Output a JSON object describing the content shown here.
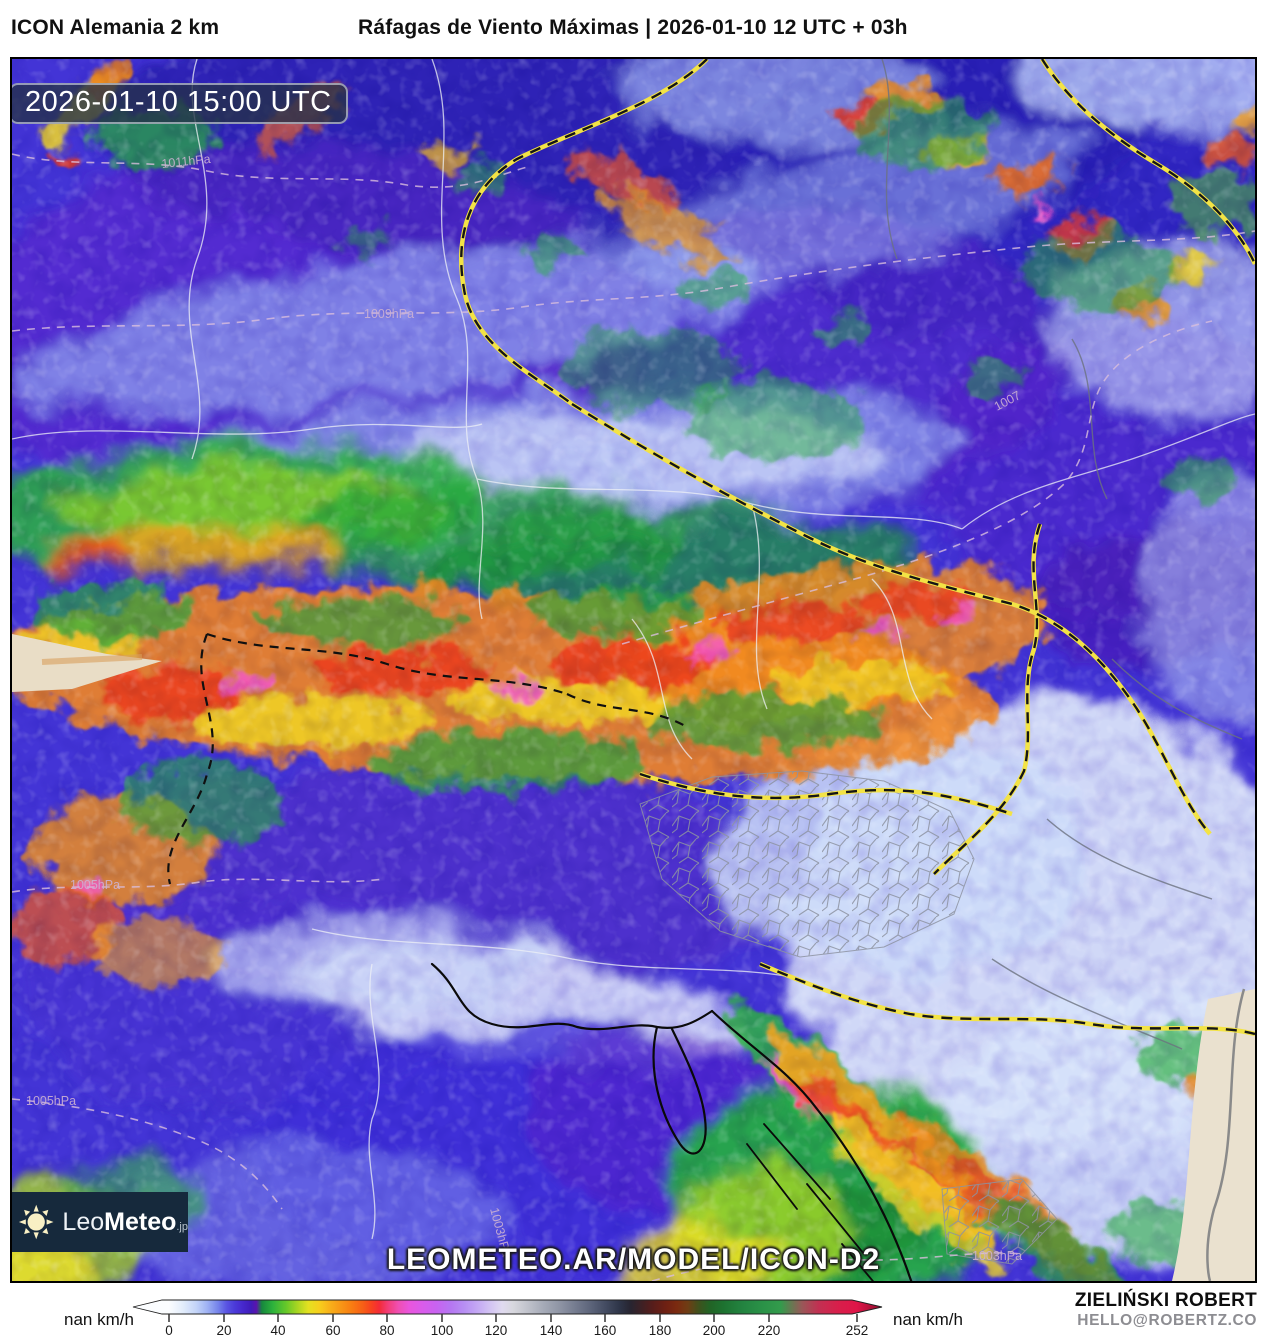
{
  "header": {
    "model": "ICON Alemania 2 km",
    "title": "Ráfagas de Viento Máximas | 2026-01-10 12 UTC + 03h"
  },
  "map": {
    "timestamp": "2026-01-10 15:00 UTC",
    "watermark": "LEOMETEO.AR/MODEL/ICON-D2",
    "isobar_labels": [
      "1011hPa",
      "1009hPa",
      "1007",
      "1005hPa",
      "1005hPa",
      "1003hPa",
      "1003hPa"
    ]
  },
  "logo": {
    "part1": "Leo",
    "part2": "Meteo",
    "suffix": ".jp"
  },
  "credits": {
    "author": "ZIELIŃSKI ROBERT",
    "contact": "HELLO@ROBERTZ.CO"
  },
  "scale": {
    "unit_left": "nan km/h",
    "unit_right": "nan km/h",
    "ticks": [
      "0",
      "20",
      "40",
      "60",
      "80",
      "100",
      "120",
      "140",
      "160",
      "180",
      "200",
      "220",
      "252"
    ],
    "tick_values": [
      0,
      20,
      40,
      60,
      80,
      100,
      120,
      140,
      160,
      180,
      200,
      220,
      252
    ],
    "max": 252,
    "gradient": [
      {
        "v": 0,
        "c": "#fbfdff"
      },
      {
        "v": 5,
        "c": "#e3edfb"
      },
      {
        "v": 10,
        "c": "#c3d4f8"
      },
      {
        "v": 14,
        "c": "#9fb2f3"
      },
      {
        "v": 18,
        "c": "#7583ea"
      },
      {
        "v": 21,
        "c": "#5a55e2"
      },
      {
        "v": 24,
        "c": "#4b3bd9"
      },
      {
        "v": 27,
        "c": "#4628cd"
      },
      {
        "v": 30,
        "c": "#3f1cba"
      },
      {
        "v": 32,
        "c": "#5a14ad"
      },
      {
        "v": 34,
        "c": "#17873d"
      },
      {
        "v": 38,
        "c": "#2db23c"
      },
      {
        "v": 43,
        "c": "#67c829"
      },
      {
        "v": 47,
        "c": "#a8d522"
      },
      {
        "v": 51,
        "c": "#e4e121"
      },
      {
        "v": 55,
        "c": "#f7cf1d"
      },
      {
        "v": 59,
        "c": "#f8b01a"
      },
      {
        "v": 63,
        "c": "#f89616"
      },
      {
        "v": 67,
        "c": "#f87c12"
      },
      {
        "v": 71,
        "c": "#f75f16"
      },
      {
        "v": 74,
        "c": "#f7431f"
      },
      {
        "v": 77,
        "c": "#f32b37"
      },
      {
        "v": 80,
        "c": "#f23c74"
      },
      {
        "v": 84,
        "c": "#ef4fb2"
      },
      {
        "v": 88,
        "c": "#e955dd"
      },
      {
        "v": 93,
        "c": "#d95ceb"
      },
      {
        "v": 98,
        "c": "#c863f0"
      },
      {
        "v": 103,
        "c": "#b675f2"
      },
      {
        "v": 108,
        "c": "#b78ef3"
      },
      {
        "v": 113,
        "c": "#c4a8f4"
      },
      {
        "v": 118,
        "c": "#d4c6f3"
      },
      {
        "v": 122,
        "c": "#e0daf0"
      },
      {
        "v": 126,
        "c": "#d8d8de"
      },
      {
        "v": 131,
        "c": "#c2c4cd"
      },
      {
        "v": 137,
        "c": "#a6abb8"
      },
      {
        "v": 143,
        "c": "#8f95a5"
      },
      {
        "v": 149,
        "c": "#747b8f"
      },
      {
        "v": 155,
        "c": "#5a6278"
      },
      {
        "v": 160,
        "c": "#434b61"
      },
      {
        "v": 165,
        "c": "#2e3548"
      },
      {
        "v": 169,
        "c": "#272531"
      },
      {
        "v": 173,
        "c": "#3d2125"
      },
      {
        "v": 177,
        "c": "#561d1b"
      },
      {
        "v": 182,
        "c": "#6e2013"
      },
      {
        "v": 186,
        "c": "#7b2a10"
      },
      {
        "v": 190,
        "c": "#6f3d14"
      },
      {
        "v": 194,
        "c": "#3f511d"
      },
      {
        "v": 198,
        "c": "#226325"
      },
      {
        "v": 203,
        "c": "#1d7230"
      },
      {
        "v": 210,
        "c": "#238340"
      },
      {
        "v": 217,
        "c": "#2a9147"
      },
      {
        "v": 224,
        "c": "#339b4c"
      },
      {
        "v": 232,
        "c": "#9a5758"
      },
      {
        "v": 238,
        "c": "#c23052"
      },
      {
        "v": 245,
        "c": "#d81f4b"
      },
      {
        "v": 252,
        "c": "#df1548"
      }
    ],
    "tip_color": "#8e0c2c"
  }
}
